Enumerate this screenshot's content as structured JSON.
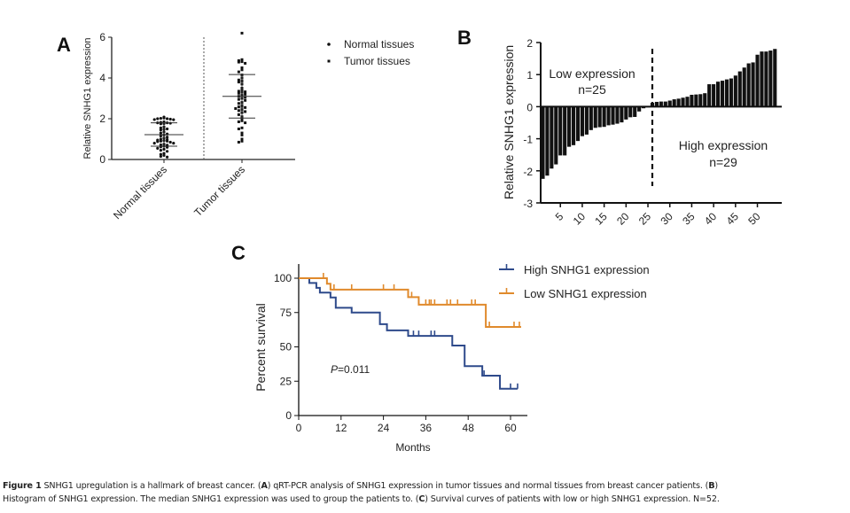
{
  "chart_data": [
    {
      "panel": "A",
      "type": "scatter",
      "ylabel": "Relative SNHG1 expression",
      "ylim": [
        0,
        6
      ],
      "yticks": [
        "0",
        "2",
        "4",
        "6"
      ],
      "categories": [
        "Normal tissues",
        "Tumor tissues"
      ],
      "legend": [
        {
          "label": "Normal tissues",
          "marker": "circle"
        },
        {
          "label": "Tumor tissues",
          "marker": "square"
        }
      ],
      "legend_position": "top-right",
      "series": [
        {
          "name": "Normal tissues",
          "mean": 1.22,
          "sd_low": 0.65,
          "sd_high": 1.8,
          "values": [
            2.08,
            2.03,
            2.02,
            2.0,
            2.0,
            1.98,
            1.96,
            1.95,
            1.85,
            1.82,
            1.8,
            1.8,
            1.78,
            1.76,
            1.75,
            1.6,
            1.55,
            1.5,
            1.48,
            1.45,
            1.35,
            1.3,
            1.25,
            1.2,
            1.15,
            1.1,
            1.05,
            1.0,
            0.98,
            0.95,
            0.93,
            0.9,
            0.9,
            0.88,
            0.85,
            0.8,
            0.8,
            0.75,
            0.72,
            0.7,
            0.65,
            0.62,
            0.6,
            0.55,
            0.5,
            0.45,
            0.4,
            0.3,
            0.25,
            0.2,
            0.15,
            0.12
          ]
        },
        {
          "name": "Tumor tissues",
          "mean": 3.1,
          "sd_low": 2.03,
          "sd_high": 4.17,
          "values": [
            6.2,
            4.9,
            4.85,
            4.8,
            4.78,
            4.72,
            4.5,
            4.4,
            4.3,
            4.15,
            4.0,
            3.9,
            3.85,
            3.8,
            3.7,
            3.5,
            3.4,
            3.35,
            3.32,
            3.3,
            3.25,
            3.2,
            3.15,
            3.1,
            3.05,
            3.0,
            2.95,
            2.9,
            2.8,
            2.75,
            2.65,
            2.6,
            2.58,
            2.55,
            2.5,
            2.45,
            2.4,
            2.35,
            2.3,
            2.2,
            2.1,
            2.0,
            1.9,
            1.85,
            1.8,
            1.55,
            1.5,
            1.3,
            1.2,
            1.0,
            0.9,
            0.85
          ]
        }
      ]
    },
    {
      "panel": "B",
      "type": "bar",
      "ylabel": "Relative SNHG1 expression",
      "ylim": [
        -3,
        2
      ],
      "yticks": [
        "-3",
        "-2",
        "-1",
        "0",
        "1",
        "2"
      ],
      "xlim": [
        0,
        54
      ],
      "xticks": [
        "5",
        "10",
        "15",
        "20",
        "25",
        "30",
        "35",
        "40",
        "45",
        "50"
      ],
      "cutoff_x": 25.5,
      "annotations": [
        {
          "text": "Low expression",
          "group": "low"
        },
        {
          "text": "n=25",
          "group": "low"
        },
        {
          "text": "High expression",
          "group": "high"
        },
        {
          "text": "n=29",
          "group": "high"
        }
      ],
      "values": [
        -2.25,
        -2.15,
        -1.93,
        -1.8,
        -1.52,
        -1.52,
        -1.25,
        -1.2,
        -1.07,
        -0.92,
        -0.87,
        -0.73,
        -0.66,
        -0.64,
        -0.63,
        -0.58,
        -0.56,
        -0.53,
        -0.49,
        -0.4,
        -0.33,
        -0.32,
        -0.15,
        -0.05,
        -0.02,
        0.12,
        0.15,
        0.16,
        0.16,
        0.19,
        0.23,
        0.25,
        0.28,
        0.31,
        0.37,
        0.38,
        0.39,
        0.42,
        0.7,
        0.7,
        0.78,
        0.81,
        0.85,
        0.88,
        0.97,
        1.1,
        1.22,
        1.35,
        1.38,
        1.62,
        1.72,
        1.72,
        1.75,
        1.8
      ]
    },
    {
      "panel": "C",
      "type": "line",
      "subtype": "kaplan-meier",
      "xlabel": "Months",
      "ylabel": "Percent survival",
      "xlim": [
        0,
        63
      ],
      "ylim": [
        0,
        100
      ],
      "xticks": [
        "0",
        "12",
        "24",
        "36",
        "48",
        "60"
      ],
      "yticks": [
        "0",
        "25",
        "50",
        "75",
        "100"
      ],
      "annotation": {
        "italic": "P",
        "text": "=0.011"
      },
      "legend_position": "top-right",
      "series": [
        {
          "name": "High SNHG1 expression",
          "color": "#2e4a8b",
          "steps": [
            [
              0,
              100
            ],
            [
              3,
              96.5
            ],
            [
              5,
              93
            ],
            [
              6,
              89.5
            ],
            [
              9,
              86
            ],
            [
              10.5,
              78.5
            ],
            [
              15,
              75
            ],
            [
              23,
              66.5
            ],
            [
              25,
              62
            ],
            [
              31,
              58
            ],
            [
              43.5,
              51
            ],
            [
              47,
              36
            ],
            [
              52,
              29
            ],
            [
              57,
              19.5
            ],
            [
              62,
              19.5
            ]
          ],
          "censored": [
            [
              32.5,
              58
            ],
            [
              34,
              58
            ],
            [
              37.5,
              58
            ],
            [
              38.5,
              58
            ],
            [
              52.5,
              29
            ],
            [
              60,
              19.5
            ],
            [
              62,
              19.5
            ]
          ]
        },
        {
          "name": "Low SNHG1 expression",
          "color": "#e08a2c",
          "steps": [
            [
              0,
              100
            ],
            [
              8,
              96
            ],
            [
              9,
              91.7
            ],
            [
              31,
              86.2
            ],
            [
              34,
              80.7
            ],
            [
              53,
              64.5
            ],
            [
              63,
              64.5
            ]
          ],
          "censored": [
            [
              7,
              100
            ],
            [
              10,
              91.7
            ],
            [
              15,
              91.7
            ],
            [
              24,
              91.7
            ],
            [
              27,
              91.7
            ],
            [
              32,
              86.2
            ],
            [
              36,
              80.7
            ],
            [
              37,
              80.7
            ],
            [
              37.5,
              80.7
            ],
            [
              38.5,
              80.7
            ],
            [
              42,
              80.7
            ],
            [
              43,
              80.7
            ],
            [
              45,
              80.7
            ],
            [
              49,
              80.7
            ],
            [
              50,
              80.7
            ],
            [
              54,
              64.5
            ],
            [
              61,
              64.5
            ],
            [
              62.5,
              64.5
            ]
          ]
        }
      ]
    }
  ],
  "panels": {
    "a_label": "A",
    "b_label": "B",
    "c_label": "C"
  },
  "caption": {
    "figure_label": "Figure 1",
    "line1_a": " SNHG1 upregulation is a hallmark of breast cancer. (",
    "line1_b": "A",
    "line1_c": ") qRT-PCR analysis of SNHG1 expression in tumor tissues and normal tissues from breast cancer patients. (",
    "line1_d": "B",
    "line1_e": ")",
    "line2_a": "Histogram of SNHG1 expression. The median SNHG1 expression was used to group the patients to. (",
    "line2_b": "C",
    "line2_c": ") Survival curves of patients with low or high SNHG1 expression. N=52."
  }
}
